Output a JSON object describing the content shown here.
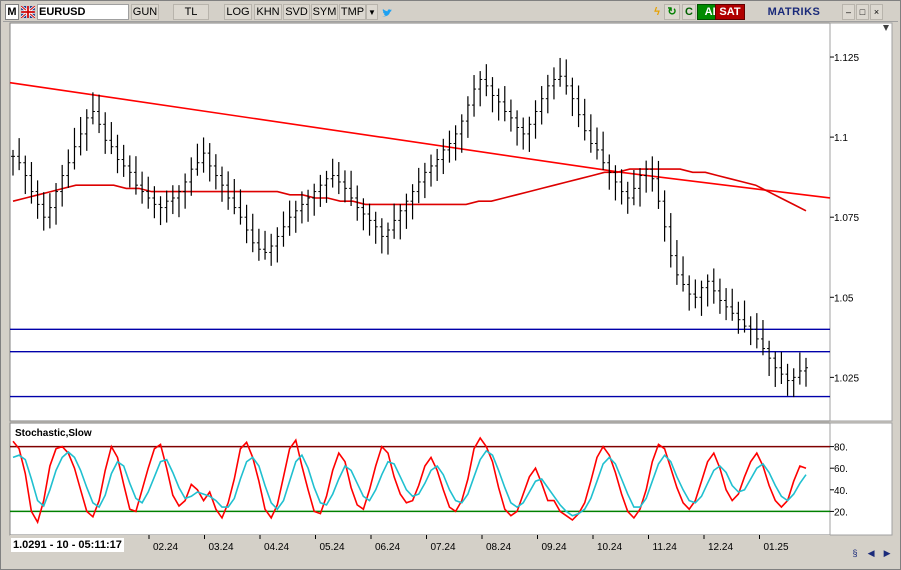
{
  "toolbar": {
    "logo": "M",
    "symbol": "EURUSD",
    "period": "GUN",
    "tl": "TL",
    "log": "LOG",
    "khn": "KHN",
    "svd": "SVD",
    "sym": "SYM",
    "tmp": "TMP",
    "dropdown_icon": "▼",
    "twitter_icon": "🐦",
    "bolt_icon": "ϟ",
    "refresh_icon": "↻",
    "c": "C",
    "buy": "AL",
    "sell": "SAT",
    "brand": "MATRIKS",
    "win_min": "–",
    "win_max": "□",
    "win_close": "×"
  },
  "status": {
    "readout": "1.0291 - 10 - 05:11:17",
    "icons": [
      "§",
      "◀",
      "▶"
    ]
  },
  "colors": {
    "price_bars": "#000000",
    "trendline": "#ff0000",
    "moving_average": "#dd0000",
    "support_lines": "#0000aa",
    "stoch_k": "#ff0000",
    "stoch_d": "#20c0d0",
    "stoch_upper": "#800000",
    "stoch_lower": "#008000",
    "buy": "#008a00",
    "sell": "#b00000"
  },
  "chart_data": [
    {
      "type": "line",
      "subtype": "ohlc-bars",
      "symbol": "EURUSD",
      "x_tick_labels": [
        "02.24",
        "03.24",
        "04.24",
        "05.24",
        "06.24",
        "07.24",
        "08.24",
        "09.24",
        "10.24",
        "11.24",
        "12.24",
        "01.25"
      ],
      "y_tick_labels": [
        "1.125",
        "1.1",
        "1.075",
        "1.05",
        "1.025"
      ],
      "ylim": [
        1.012,
        1.135
      ],
      "close_series": [
        1.094,
        1.092,
        1.088,
        1.083,
        1.079,
        1.075,
        1.078,
        1.083,
        1.088,
        1.092,
        1.097,
        1.101,
        1.106,
        1.108,
        1.104,
        1.099,
        1.097,
        1.093,
        1.091,
        1.089,
        1.085,
        1.083,
        1.081,
        1.079,
        1.078,
        1.08,
        1.081,
        1.083,
        1.086,
        1.09,
        1.092,
        1.095,
        1.091,
        1.088,
        1.085,
        1.081,
        1.078,
        1.075,
        1.071,
        1.067,
        1.065,
        1.064,
        1.066,
        1.069,
        1.072,
        1.075,
        1.077,
        1.079,
        1.081,
        1.083,
        1.085,
        1.087,
        1.088,
        1.086,
        1.084,
        1.081,
        1.078,
        1.076,
        1.074,
        1.072,
        1.069,
        1.071,
        1.074,
        1.077,
        1.08,
        1.083,
        1.086,
        1.089,
        1.091,
        1.093,
        1.096,
        1.098,
        1.101,
        1.105,
        1.11,
        1.115,
        1.118,
        1.116,
        1.113,
        1.111,
        1.108,
        1.106,
        1.103,
        1.101,
        1.104,
        1.108,
        1.112,
        1.116,
        1.118,
        1.119,
        1.116,
        1.112,
        1.107,
        1.102,
        1.098,
        1.096,
        1.092,
        1.089,
        1.086,
        1.083,
        1.081,
        1.084,
        1.088,
        1.09,
        1.087,
        1.08,
        1.072,
        1.063,
        1.057,
        1.054,
        1.051,
        1.05,
        1.053,
        1.055,
        1.052,
        1.049,
        1.047,
        1.045,
        1.043,
        1.041,
        1.04,
        1.037,
        1.034,
        1.031,
        1.028,
        1.026,
        1.024,
        1.025,
        1.027,
        1.028
      ],
      "moving_average": [
        1.08,
        1.081,
        1.082,
        1.083,
        1.084,
        1.085,
        1.085,
        1.085,
        1.085,
        1.084,
        1.084,
        1.083,
        1.083,
        1.083,
        1.083,
        1.083,
        1.083,
        1.083,
        1.083,
        1.083,
        1.083,
        1.083,
        1.082,
        1.082,
        1.081,
        1.081,
        1.08,
        1.08,
        1.079,
        1.079,
        1.079,
        1.079,
        1.079,
        1.079,
        1.079,
        1.079,
        1.079,
        1.08,
        1.08,
        1.081,
        1.082,
        1.083,
        1.084,
        1.085,
        1.086,
        1.087,
        1.088,
        1.089,
        1.089,
        1.09,
        1.09,
        1.09,
        1.09,
        1.09,
        1.089,
        1.089,
        1.088,
        1.087,
        1.086,
        1.085,
        1.083,
        1.081,
        1.079,
        1.077
      ],
      "trendline": {
        "from": [
          "start",
          1.117
        ],
        "to": [
          "10.24",
          1.089
        ]
      },
      "trendline_2": {
        "from": [
          "11.24",
          1.089
        ],
        "to": [
          "end",
          1.081
        ]
      },
      "horizontal_levels": [
        1.04,
        1.033,
        1.019
      ],
      "grid": false
    },
    {
      "type": "line",
      "title": "Stochastic,Slow",
      "y_tick_labels": [
        "80.",
        "60.",
        "40.",
        "20."
      ],
      "ylim": [
        0,
        100
      ],
      "levels": [
        80,
        20
      ],
      "series": [
        {
          "values": [
            85,
            78,
            55,
            20,
            10,
            30,
            62,
            78,
            80,
            74,
            60,
            40,
            20,
            15,
            30,
            58,
            80,
            70,
            45,
            22,
            20,
            40,
            60,
            78,
            82,
            60,
            35,
            25,
            30,
            45,
            40,
            30,
            38,
            22,
            14,
            28,
            50,
            78,
            84,
            70,
            48,
            22,
            14,
            26,
            52,
            78,
            86,
            62,
            40,
            20,
            18,
            34,
            58,
            74,
            66,
            42,
            26,
            22,
            40,
            62,
            80,
            74,
            52,
            36,
            28,
            30,
            44,
            62,
            70,
            58,
            40,
            24,
            20,
            30,
            50,
            78,
            88,
            80,
            66,
            42,
            22,
            16,
            20,
            36,
            52,
            60,
            46,
            30,
            30,
            20,
            16,
            12,
            18,
            28,
            48,
            70,
            80,
            72,
            56,
            36,
            20,
            14,
            22,
            40,
            66,
            82,
            78,
            60,
            42,
            28,
            22,
            30,
            48,
            66,
            74,
            60,
            40,
            30,
            36,
            52,
            66,
            74,
            62,
            44,
            30,
            24,
            30,
            48,
            62,
            60
          ]
        },
        {
          "values": [
            70,
            72,
            68,
            50,
            30,
            25,
            40,
            58,
            70,
            75,
            70,
            58,
            42,
            28,
            24,
            35,
            55,
            66,
            62,
            46,
            32,
            28,
            38,
            52,
            66,
            68,
            56,
            42,
            32,
            34,
            38,
            36,
            34,
            30,
            24,
            24,
            32,
            50,
            66,
            70,
            62,
            44,
            28,
            22,
            30,
            48,
            66,
            72,
            60,
            42,
            28,
            26,
            36,
            50,
            62,
            58,
            46,
            34,
            30,
            40,
            54,
            66,
            64,
            52,
            40,
            34,
            36,
            46,
            58,
            62,
            54,
            40,
            30,
            28,
            36,
            52,
            68,
            76,
            72,
            58,
            42,
            28,
            24,
            28,
            38,
            48,
            50,
            42,
            34,
            26,
            20,
            16,
            18,
            22,
            32,
            48,
            64,
            70,
            64,
            50,
            36,
            24,
            24,
            32,
            48,
            64,
            72,
            66,
            52,
            40,
            30,
            28,
            34,
            46,
            58,
            62,
            56,
            44,
            38,
            40,
            50,
            60,
            64,
            56,
            44,
            34,
            30,
            36,
            46,
            54
          ]
        }
      ]
    }
  ]
}
